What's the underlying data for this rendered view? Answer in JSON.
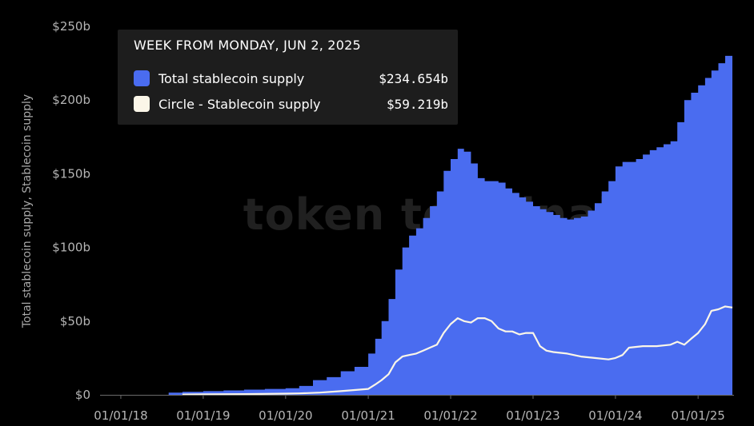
{
  "chart_data": {
    "type": "area",
    "title": "",
    "ylabel": "Total stablecoin supply, Stablecoin supply",
    "xlabel": "",
    "ylim": [
      0,
      250
    ],
    "xlim": [
      "2017-10-01",
      "2025-06-09"
    ],
    "yticks": [
      "$0",
      "$50b",
      "$100b",
      "$150b",
      "$200b",
      "$250b"
    ],
    "ytick_values": [
      0,
      50,
      100,
      150,
      200,
      250
    ],
    "xticks": [
      "01/01/18",
      "01/01/19",
      "01/01/20",
      "01/01/21",
      "01/01/22",
      "01/01/23",
      "01/01/24",
      "01/01/25"
    ],
    "xtick_dates": [
      "2018-01-01",
      "2019-01-01",
      "2020-01-01",
      "2021-01-01",
      "2022-01-01",
      "2023-01-01",
      "2024-01-01",
      "2025-01-01"
    ],
    "watermark": "token terminal",
    "grid": false,
    "series": [
      {
        "name": "Total stablecoin supply",
        "kind": "area",
        "color": "#4a6cf0",
        "x": [
          "2018-08-01",
          "2018-10-01",
          "2019-01-01",
          "2019-04-01",
          "2019-07-01",
          "2019-10-01",
          "2020-01-01",
          "2020-03-01",
          "2020-05-01",
          "2020-07-01",
          "2020-09-01",
          "2020-11-01",
          "2021-01-01",
          "2021-02-01",
          "2021-03-01",
          "2021-04-01",
          "2021-05-01",
          "2021-06-01",
          "2021-07-01",
          "2021-08-01",
          "2021-09-01",
          "2021-10-01",
          "2021-11-01",
          "2021-12-01",
          "2022-01-01",
          "2022-02-01",
          "2022-03-01",
          "2022-04-01",
          "2022-05-01",
          "2022-06-01",
          "2022-07-01",
          "2022-08-01",
          "2022-09-01",
          "2022-10-01",
          "2022-11-01",
          "2022-12-01",
          "2023-01-01",
          "2023-02-01",
          "2023-03-01",
          "2023-04-01",
          "2023-05-01",
          "2023-06-01",
          "2023-07-01",
          "2023-08-01",
          "2023-09-01",
          "2023-10-01",
          "2023-11-01",
          "2023-12-01",
          "2024-01-01",
          "2024-02-01",
          "2024-03-01",
          "2024-04-01",
          "2024-05-01",
          "2024-06-01",
          "2024-07-01",
          "2024-08-01",
          "2024-09-01",
          "2024-10-01",
          "2024-11-01",
          "2024-12-01",
          "2025-01-01",
          "2025-02-01",
          "2025-03-01",
          "2025-04-01",
          "2025-05-01",
          "2025-06-02"
        ],
        "values": [
          1.5,
          2,
          2.5,
          3,
          3.5,
          4,
          4.5,
          6,
          10,
          12,
          16,
          19,
          28,
          38,
          50,
          65,
          85,
          100,
          108,
          113,
          120,
          128,
          138,
          152,
          160,
          167,
          165,
          157,
          147,
          145,
          145,
          144,
          140,
          137,
          134,
          131,
          128,
          126,
          124,
          122,
          120,
          119,
          120,
          121,
          125,
          130,
          138,
          145,
          155,
          158,
          158,
          160,
          163,
          166,
          168,
          170,
          172,
          185,
          200,
          205,
          210,
          215,
          220,
          225,
          230,
          234.654
        ]
      },
      {
        "name": "Circle - Stablecoin supply",
        "kind": "line",
        "color": "#fbf6e8",
        "x": [
          "2018-10-01",
          "2019-01-01",
          "2019-07-01",
          "2020-01-01",
          "2020-03-01",
          "2020-06-01",
          "2020-09-01",
          "2021-01-01",
          "2021-02-01",
          "2021-03-01",
          "2021-04-01",
          "2021-05-01",
          "2021-06-01",
          "2021-07-01",
          "2021-08-01",
          "2021-09-01",
          "2021-10-01",
          "2021-11-01",
          "2021-12-01",
          "2022-01-01",
          "2022-02-01",
          "2022-03-01",
          "2022-04-01",
          "2022-05-01",
          "2022-06-01",
          "2022-07-01",
          "2022-08-01",
          "2022-09-01",
          "2022-10-01",
          "2022-11-01",
          "2022-12-01",
          "2023-01-01",
          "2023-02-01",
          "2023-03-01",
          "2023-04-01",
          "2023-06-01",
          "2023-08-01",
          "2023-10-01",
          "2023-12-01",
          "2024-01-01",
          "2024-02-01",
          "2024-03-01",
          "2024-05-01",
          "2024-07-01",
          "2024-09-01",
          "2024-10-01",
          "2024-11-01",
          "2024-12-01",
          "2025-01-01",
          "2025-02-01",
          "2025-03-01",
          "2025-04-01",
          "2025-05-01",
          "2025-06-02"
        ],
        "values": [
          0.2,
          0.3,
          0.5,
          0.8,
          1,
          1.5,
          2.5,
          4,
          7,
          10,
          14,
          22,
          26,
          27,
          28,
          30,
          32,
          34,
          42,
          48,
          52,
          50,
          49,
          52,
          52,
          50,
          45,
          43,
          43,
          41,
          42,
          42,
          33,
          30,
          29,
          28,
          26,
          25,
          24,
          25,
          27,
          32,
          33,
          33,
          34,
          36,
          34,
          38,
          42,
          48,
          57,
          58,
          60,
          59.219
        ]
      }
    ]
  },
  "tooltip": {
    "title": "WEEK FROM MONDAY, JUN 2, 2025",
    "rows": [
      {
        "label": "Total stablecoin supply",
        "value": "$234.654b",
        "color": "#4a6cf0"
      },
      {
        "label": "Circle - Stablecoin supply",
        "value": "$59.219b",
        "color": "#fbf6e8"
      }
    ]
  }
}
